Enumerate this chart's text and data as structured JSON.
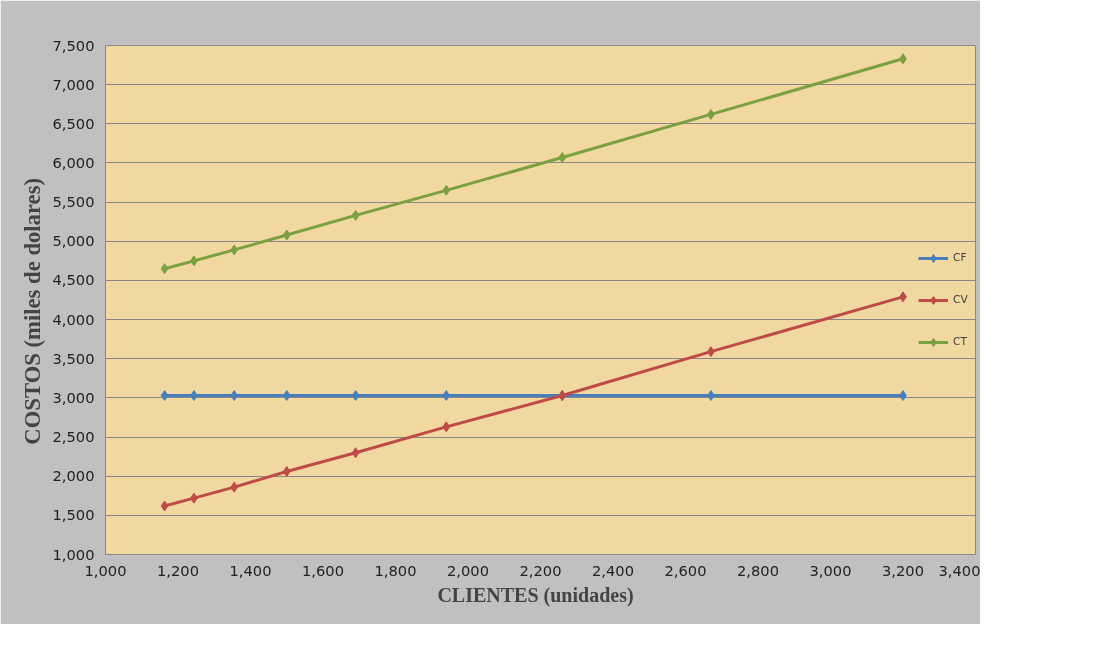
{
  "chart_data": {
    "type": "line",
    "xlabel": "CLIENTES   (unidades)",
    "ylabel": "COSTOS     (miles de dolares)",
    "x": [
      1163,
      1244,
      1355,
      1500,
      1690,
      1940,
      2260,
      2670,
      3200
    ],
    "series": [
      {
        "name": "CF",
        "color": "#4a7ebb",
        "values": [
          3030,
          3030,
          3030,
          3030,
          3030,
          3030,
          3030,
          3030,
          3030
        ]
      },
      {
        "name": "CV",
        "color": "#be4b48",
        "values": [
          1620,
          1720,
          1860,
          2060,
          2300,
          2630,
          3030,
          3590,
          4290
        ]
      },
      {
        "name": "CT",
        "color": "#7aa03f",
        "values": [
          4650,
          4750,
          4890,
          5080,
          5330,
          5650,
          6070,
          6620,
          7330
        ]
      }
    ],
    "xlim": [
      1000,
      3400
    ],
    "xticks": [
      {
        "value": 1000,
        "label": "1,000"
      },
      {
        "value": 1200,
        "label": "1,200"
      },
      {
        "value": 1400,
        "label": "1,400"
      },
      {
        "value": 1600,
        "label": "1,600"
      },
      {
        "value": 1800,
        "label": "1,800"
      },
      {
        "value": 2000,
        "label": "2,000"
      },
      {
        "value": 2200,
        "label": "2,200"
      },
      {
        "value": 2400,
        "label": "2,400"
      },
      {
        "value": 2600,
        "label": "2,600"
      },
      {
        "value": 2800,
        "label": "2,800"
      },
      {
        "value": 3000,
        "label": "3,000"
      },
      {
        "value": 3200,
        "label": "3,200"
      },
      {
        "value": 3400,
        "label": "3,400"
      }
    ],
    "ylim": [
      1000,
      7500
    ],
    "yticks": [
      {
        "value": 1000,
        "label": "1,000"
      },
      {
        "value": 1500,
        "label": "1,500"
      },
      {
        "value": 2000,
        "label": "2,000"
      },
      {
        "value": 2500,
        "label": "2,500"
      },
      {
        "value": 3000,
        "label": "3,000"
      },
      {
        "value": 3500,
        "label": "3,500"
      },
      {
        "value": 4000,
        "label": "4,000"
      },
      {
        "value": 4500,
        "label": "4,500"
      },
      {
        "value": 5000,
        "label": "5,000"
      },
      {
        "value": 5500,
        "label": "5,500"
      },
      {
        "value": 6000,
        "label": "6,000"
      },
      {
        "value": 6500,
        "label": "6,500"
      },
      {
        "value": 7000,
        "label": "7,000"
      },
      {
        "value": 7500,
        "label": "7,500"
      }
    ],
    "grid": "y",
    "legend": "right",
    "marker": "diamond",
    "line_style": "solid"
  }
}
